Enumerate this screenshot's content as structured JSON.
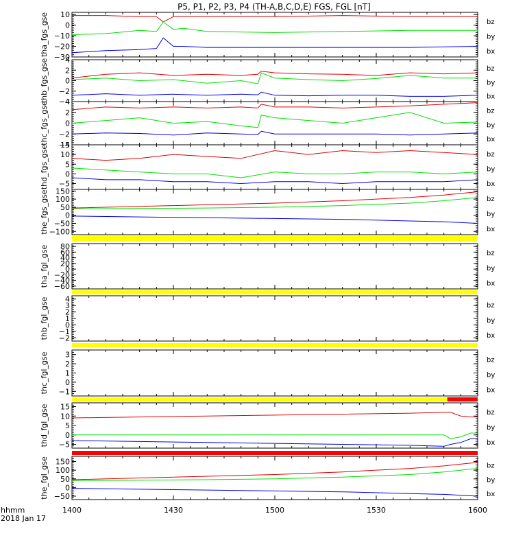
{
  "title": "P5, P1, P2, P3, P4 (TH-A,B,C,D,E) FGS, FGL [nT]",
  "x_axis": {
    "ticks": [
      "1400",
      "1430",
      "1500",
      "1530",
      "1600"
    ],
    "label": "hhmm",
    "date": "2018 Jan 17"
  },
  "colors": {
    "bz": "#e00000",
    "by": "#00e000",
    "bx": "#0000e0",
    "flag_yellow": "#ffff00",
    "flag_red": "#ff0000",
    "axis": "#000000"
  },
  "chart_data": [
    {
      "type": "line",
      "ylabel": "tha_fgs_gse",
      "ylim": [
        -30,
        12
      ],
      "yticks": [
        "10",
        "0",
        "−10",
        "−20",
        "−30"
      ],
      "x": [
        0,
        10,
        20,
        25,
        27,
        30,
        33,
        40,
        60,
        80,
        100,
        120
      ],
      "series": [
        {
          "name": "bz",
          "values": [
            9,
            9,
            8,
            8,
            3,
            8,
            8,
            8,
            8,
            9,
            8,
            8
          ]
        },
        {
          "name": "by",
          "values": [
            -9,
            -8,
            -5,
            -6,
            3,
            -4,
            -3,
            -6,
            -7,
            -6,
            -5,
            -5
          ]
        },
        {
          "name": "bx",
          "values": [
            -26,
            -24,
            -23,
            -22,
            -12,
            -20,
            -20,
            -21,
            -21,
            -21,
            -21,
            -20
          ]
        }
      ]
    },
    {
      "type": "line",
      "ylabel": "thb_fgs_gse",
      "ylim": [
        -4,
        4
      ],
      "yticks": [
        "4",
        "2",
        "0",
        "−2",
        "−4"
      ],
      "x": [
        0,
        10,
        20,
        30,
        40,
        50,
        55,
        56,
        60,
        70,
        80,
        90,
        100,
        110,
        120
      ],
      "series": [
        {
          "name": "bz",
          "values": [
            0.5,
            1.2,
            1.5,
            1.0,
            1.2,
            1.0,
            1.2,
            1.8,
            1.5,
            1.3,
            1.2,
            1.0,
            1.5,
            1.3,
            1.5
          ]
        },
        {
          "name": "by",
          "values": [
            0.2,
            0.5,
            0.0,
            0.2,
            -0.5,
            0.0,
            -0.6,
            1.5,
            0.5,
            0.2,
            0.0,
            0.4,
            1.0,
            0.5,
            0.5
          ]
        },
        {
          "name": "bx",
          "values": [
            -2.8,
            -2.5,
            -2.8,
            -2.6,
            -2.8,
            -2.6,
            -2.7,
            -2.2,
            -2.8,
            -2.9,
            -2.8,
            -2.8,
            -3.0,
            -3.0,
            -2.8
          ]
        }
      ]
    },
    {
      "type": "line",
      "ylabel": "thc_fgs_gse",
      "ylim": [
        -4,
        4
      ],
      "yticks": [
        "4",
        "2",
        "0",
        "−2",
        "−4"
      ],
      "x": [
        0,
        10,
        20,
        30,
        40,
        50,
        55,
        56,
        60,
        70,
        80,
        90,
        100,
        110,
        120
      ],
      "series": [
        {
          "name": "bz",
          "values": [
            2.5,
            3.0,
            2.8,
            3.0,
            2.8,
            3.0,
            2.8,
            3.5,
            3.0,
            3.0,
            2.8,
            3.0,
            3.2,
            3.5,
            3.8
          ]
        },
        {
          "name": "by",
          "values": [
            0.0,
            0.5,
            1.0,
            0.0,
            0.3,
            -0.5,
            -0.8,
            1.5,
            1.0,
            0.5,
            0.0,
            1.0,
            2.0,
            0.0,
            0.2
          ]
        },
        {
          "name": "bx",
          "values": [
            -2.0,
            -1.8,
            -1.9,
            -2.2,
            -1.8,
            -2.0,
            -2.1,
            -1.5,
            -2.0,
            -2.0,
            -2.0,
            -2.0,
            -2.2,
            -2.0,
            -1.8
          ]
        }
      ]
    },
    {
      "type": "line",
      "ylabel": "thd_fgs_gse",
      "ylim": [
        -8,
        15
      ],
      "yticks": [
        "15",
        "10",
        "5",
        "0",
        "−5"
      ],
      "x": [
        0,
        10,
        20,
        30,
        40,
        50,
        60,
        70,
        80,
        90,
        100,
        110,
        120
      ],
      "series": [
        {
          "name": "bz",
          "values": [
            8,
            7,
            8,
            10,
            9,
            8,
            12,
            10,
            12,
            11,
            12,
            11,
            10
          ]
        },
        {
          "name": "by",
          "values": [
            3,
            2,
            1,
            0,
            0,
            -2,
            1,
            0,
            0,
            1,
            1,
            0,
            1
          ]
        },
        {
          "name": "bx",
          "values": [
            -2,
            -3,
            -3,
            -4,
            -4,
            -5,
            -4,
            -4,
            -5,
            -4,
            -4,
            -4,
            -3
          ]
        }
      ]
    },
    {
      "type": "line",
      "ylabel": "the_fgs_gse",
      "ylim": [
        -120,
        160
      ],
      "yticks": [
        "150",
        "100",
        "50",
        "0",
        "−50",
        "−100"
      ],
      "x": [
        0,
        20,
        40,
        60,
        80,
        100,
        110,
        120
      ],
      "series": [
        {
          "name": "bz",
          "values": [
            45,
            55,
            65,
            75,
            90,
            110,
            125,
            145
          ]
        },
        {
          "name": "by",
          "values": [
            40,
            42,
            45,
            50,
            60,
            75,
            90,
            110
          ]
        },
        {
          "name": "bx",
          "values": [
            -5,
            -10,
            -15,
            -20,
            -25,
            -35,
            -40,
            -50
          ]
        }
      ]
    },
    {
      "type": "line",
      "ylabel": "tha_fgl_gse",
      "ylim": [
        -70,
        90
      ],
      "yticks": [
        "80",
        "60",
        "40",
        "20",
        "0",
        "−20",
        "−40",
        "−60"
      ],
      "x": [],
      "series": [
        {
          "name": "bz",
          "values": []
        },
        {
          "name": "by",
          "values": []
        },
        {
          "name": "bx",
          "values": []
        }
      ]
    },
    {
      "type": "line",
      "ylabel": "thb_fgl_gse",
      "ylim": [
        -2.5,
        4.5
      ],
      "yticks": [
        "4",
        "3",
        "2",
        "1",
        "0",
        "−1",
        "−2"
      ],
      "x": [],
      "series": [
        {
          "name": "bz",
          "values": []
        },
        {
          "name": "by",
          "values": []
        },
        {
          "name": "bx",
          "values": []
        }
      ]
    },
    {
      "type": "line",
      "ylabel": "thc_fgl_gse",
      "ylim": [
        -1.5,
        3.5
      ],
      "yticks": [
        "3",
        "2",
        "1",
        "0",
        "−1"
      ],
      "x": [],
      "series": [
        {
          "name": "bz",
          "values": []
        },
        {
          "name": "by",
          "values": []
        },
        {
          "name": "bx",
          "values": []
        }
      ]
    },
    {
      "type": "line",
      "ylabel": "thd_fgl_gse",
      "ylim": [
        -7,
        17
      ],
      "yticks": [
        "15",
        "10",
        "5",
        "0",
        "−5"
      ],
      "x": [
        0,
        20,
        40,
        60,
        80,
        100,
        110,
        112,
        115,
        118,
        120
      ],
      "series": [
        {
          "name": "bz",
          "values": [
            9,
            9.5,
            10,
            10.5,
            11,
            11.5,
            12,
            12,
            10,
            9.5,
            9.5
          ]
        },
        {
          "name": "by",
          "values": [
            0,
            0,
            0,
            0,
            0,
            0,
            0,
            -2,
            -1,
            1,
            1
          ]
        },
        {
          "name": "bx",
          "values": [
            -3,
            -3.5,
            -4,
            -4.5,
            -5,
            -5.5,
            -6,
            -5,
            -4,
            -2,
            -2
          ]
        }
      ]
    },
    {
      "type": "line",
      "ylabel": "the_fgl_gse",
      "ylim": [
        -70,
        180
      ],
      "yticks": [
        "150",
        "100",
        "50",
        "0",
        "−50"
      ],
      "x": [
        0,
        20,
        40,
        60,
        80,
        100,
        110,
        120
      ],
      "series": [
        {
          "name": "bz",
          "values": [
            45,
            55,
            65,
            75,
            90,
            110,
            125,
            145
          ]
        },
        {
          "name": "by",
          "values": [
            40,
            42,
            45,
            50,
            60,
            75,
            90,
            110
          ]
        },
        {
          "name": "bx",
          "values": [
            -5,
            -10,
            -15,
            -20,
            -25,
            -35,
            -40,
            -50
          ]
        }
      ]
    }
  ],
  "flag_bars": [
    {
      "after_panel": 4,
      "segments": [
        {
          "from": 0,
          "to": 120,
          "color": "yellow"
        }
      ]
    },
    {
      "after_panel": 5,
      "segments": [
        {
          "from": 0,
          "to": 120,
          "color": "yellow"
        }
      ]
    },
    {
      "after_panel": 6,
      "segments": [
        {
          "from": 0,
          "to": 120,
          "color": "yellow"
        }
      ]
    },
    {
      "after_panel": 7,
      "segments": [
        {
          "from": 0,
          "to": 111,
          "color": "yellow"
        },
        {
          "from": 111,
          "to": 120,
          "color": "red"
        }
      ]
    },
    {
      "after_panel": 8,
      "segments": [
        {
          "from": 0,
          "to": 120,
          "color": "red"
        }
      ]
    }
  ]
}
